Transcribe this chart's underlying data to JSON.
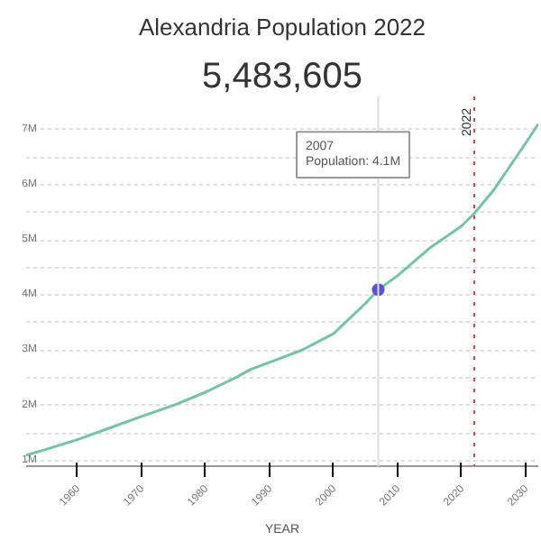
{
  "chart_data": {
    "type": "line",
    "title": "Alexandria Population 2022",
    "subtitle": "5,483,605",
    "xlabel": "YEAR",
    "x": [
      1952,
      1955,
      1960,
      1965,
      1970,
      1975,
      1980,
      1985,
      1987,
      1990,
      1995,
      2000,
      2005,
      2007,
      2010,
      2015,
      2020,
      2022,
      2025,
      2030,
      2032
    ],
    "series": [
      {
        "color": "#72c4a4",
        "values": [
          1.1,
          1.2,
          1.38,
          1.59,
          1.8,
          2.0,
          2.24,
          2.52,
          2.65,
          2.78,
          3.0,
          3.3,
          3.85,
          4.1,
          4.35,
          4.85,
          5.25,
          5.48,
          5.9,
          6.75,
          7.1
        ]
      },
      {
        "type": "scatter",
        "color": "#5b4fd6",
        "marker": "circle",
        "x": [
          2007
        ],
        "values": [
          4.1
        ]
      }
    ],
    "xlim": [
      1952,
      2032
    ],
    "ylim": [
      0.9,
      7.6
    ],
    "xticks": [
      1960,
      1970,
      1980,
      1990,
      2000,
      2010,
      2020,
      2030
    ],
    "yticks": [
      {
        "value": 1,
        "label": "1M"
      },
      {
        "value": 1.5,
        "label": null
      },
      {
        "value": 2,
        "label": "2M"
      },
      {
        "value": 2.5,
        "label": null
      },
      {
        "value": 3,
        "label": "3M"
      },
      {
        "value": 3.5,
        "label": null
      },
      {
        "value": 4,
        "label": "4M"
      },
      {
        "value": 4.5,
        "label": null
      },
      {
        "value": 5,
        "label": "5M"
      },
      {
        "value": 5.5,
        "label": null
      },
      {
        "value": 6,
        "label": "6M"
      },
      {
        "value": 6.5,
        "label": null
      },
      {
        "value": 7,
        "label": "7M"
      }
    ],
    "ref_lines": [
      {
        "axis": "x",
        "value": 2022,
        "label": "2022",
        "color": "#e8413c",
        "line_style": "dotted"
      },
      {
        "axis": "x",
        "value": 2007,
        "label": null,
        "color": "#dddddd",
        "line_style": "solid"
      }
    ],
    "annotations": [
      "2007\nPopulation: 4.1M"
    ],
    "grid": "y"
  }
}
